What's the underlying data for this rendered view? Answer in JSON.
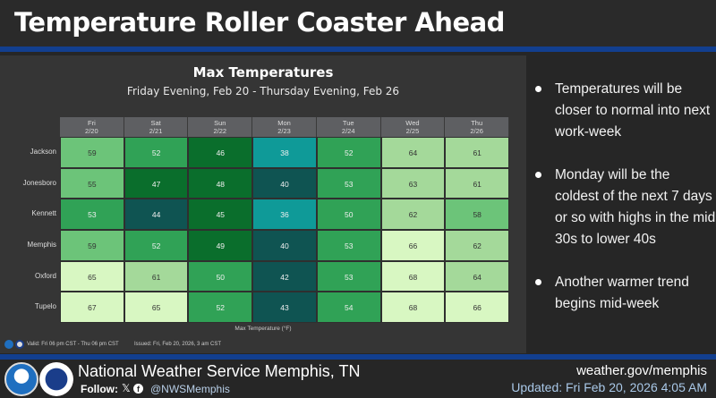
{
  "header": {
    "title": "Temperature Roller Coaster Ahead"
  },
  "chart_data": {
    "type": "heatmap",
    "title": "Max Temperatures",
    "subtitle": "Friday Evening, Feb 20 - Thursday Evening, Feb 26",
    "xlabel": "Max Temperature (°F)",
    "columns": [
      {
        "day": "Fri",
        "date": "2/20"
      },
      {
        "day": "Sat",
        "date": "2/21"
      },
      {
        "day": "Sun",
        "date": "2/22"
      },
      {
        "day": "Mon",
        "date": "2/23"
      },
      {
        "day": "Tue",
        "date": "2/24"
      },
      {
        "day": "Wed",
        "date": "2/25"
      },
      {
        "day": "Thu",
        "date": "2/26"
      }
    ],
    "rows": [
      {
        "city": "Jackson",
        "values": [
          59,
          52,
          46,
          38,
          52,
          64,
          61
        ]
      },
      {
        "city": "Jonesboro",
        "values": [
          55,
          47,
          48,
          40,
          53,
          63,
          61
        ]
      },
      {
        "city": "Kennett",
        "values": [
          53,
          44,
          45,
          36,
          50,
          62,
          58
        ]
      },
      {
        "city": "Memphis",
        "values": [
          59,
          52,
          49,
          40,
          53,
          66,
          62
        ]
      },
      {
        "city": "Oxford",
        "values": [
          65,
          61,
          50,
          42,
          53,
          68,
          64
        ]
      },
      {
        "city": "Tupelo",
        "values": [
          67,
          65,
          52,
          43,
          54,
          68,
          66
        ]
      }
    ],
    "color_scale": [
      {
        "min": 36,
        "max": 39,
        "color": "#0f9a98"
      },
      {
        "min": 40,
        "max": 44,
        "color": "#0f5452"
      },
      {
        "min": 45,
        "max": 49,
        "color": "#0a6e2c"
      },
      {
        "min": 50,
        "max": 54,
        "color": "#30a256"
      },
      {
        "min": 55,
        "max": 59,
        "color": "#6cc479"
      },
      {
        "min": 60,
        "max": 64,
        "color": "#a4d99a"
      },
      {
        "min": 65,
        "max": 70,
        "color": "#d8f7c2"
      }
    ]
  },
  "chart_footer": {
    "valid": "Valid: Fri 06 pm CST - Thu 06 pm CST",
    "issued": "Issued: Fri, Feb 20, 2026, 3 am CST"
  },
  "bullets": [
    "Temperatures will be closer to normal into next work-week",
    "Monday will be the coldest of the next 7 days or so with highs in the mid 30s to lower 40s",
    "Another warmer trend begins mid-week"
  ],
  "footer": {
    "office": "National Weather Service Memphis, TN",
    "follow": "Follow:",
    "x_icon": "𝕏",
    "handle": "@NWSMemphis",
    "site": "weather.gov/memphis",
    "updated": "Updated: Fri Feb 20, 2026 4:05 AM"
  },
  "colors": {
    "accent_blue": "#123f8f"
  }
}
